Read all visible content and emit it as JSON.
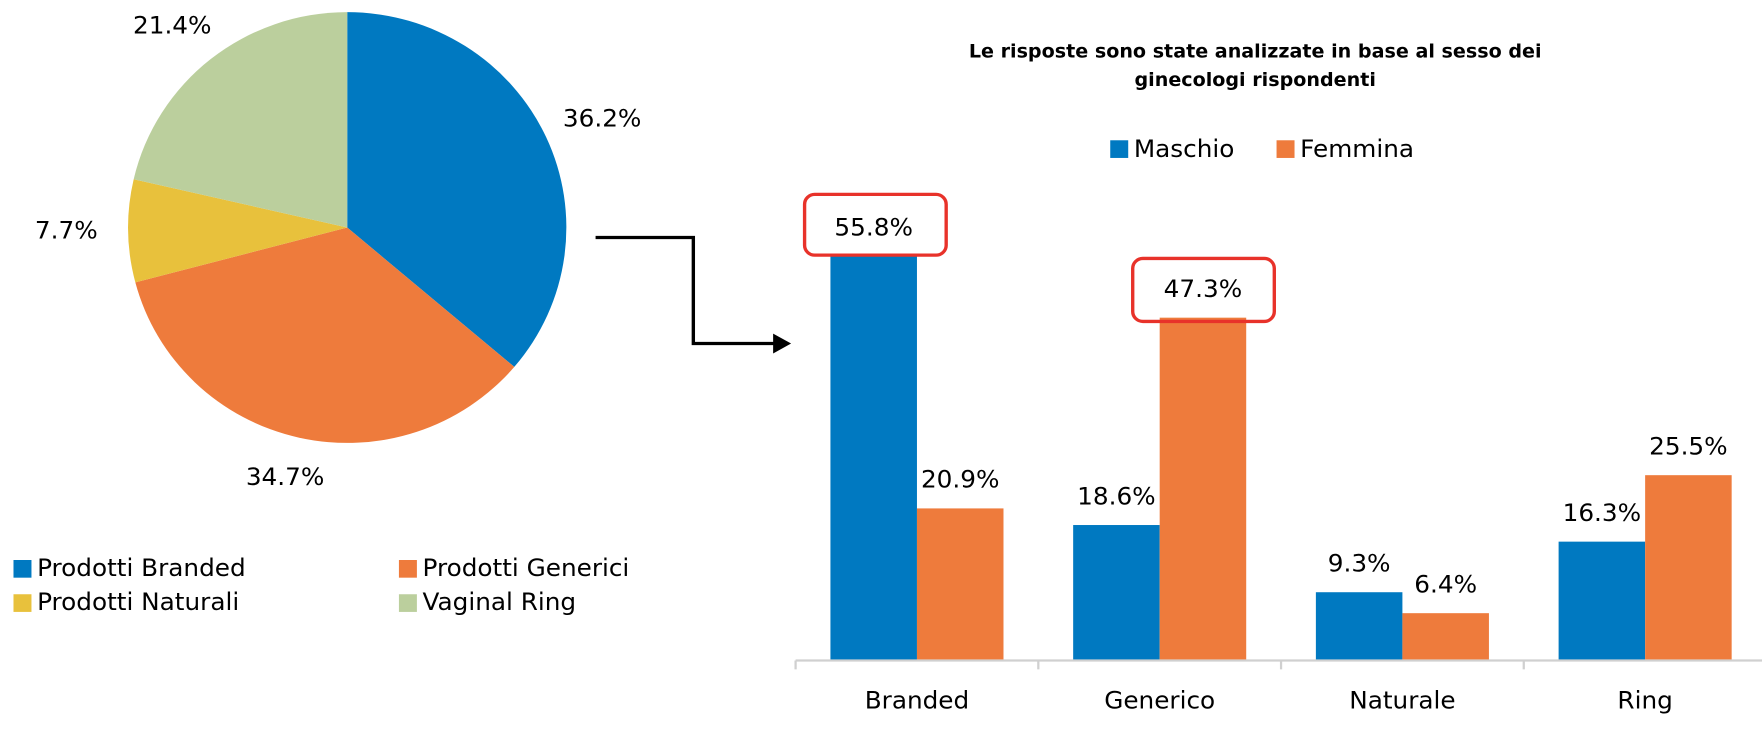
{
  "chart_data": [
    {
      "type": "pie",
      "categories": [
        "Prodotti Branded",
        "Prodotti Generici",
        "Prodotti Naturali",
        "Vaginal Ring"
      ],
      "values": [
        36.2,
        34.7,
        7.7,
        21.4
      ],
      "value_labels": [
        "36.2%",
        "34.7%",
        "7.7%",
        "21.4%"
      ],
      "colors": [
        "#0079c1",
        "#ee7b3c",
        "#e8c13c",
        "#bbcf9d"
      ]
    },
    {
      "type": "bar",
      "title": [
        "Le risposte sono state analizzate in base al sesso dei",
        "ginecologi rispondenti"
      ],
      "categories": [
        "Branded",
        "Generico",
        "Naturale",
        "Ring"
      ],
      "series": [
        {
          "name": "Maschio",
          "color": "#0079c1",
          "values": [
            55.8,
            18.6,
            9.3,
            16.3
          ],
          "value_labels": [
            "55.8%",
            "18.6%",
            "9.3%",
            "16.3%"
          ]
        },
        {
          "name": "Femmina",
          "color": "#ee7b3c",
          "values": [
            20.9,
            47.3,
            6.4,
            25.5
          ],
          "value_labels": [
            "20.9%",
            "47.3%",
            "6.4%",
            "25.5%"
          ]
        }
      ],
      "legend": "top"
    }
  ]
}
